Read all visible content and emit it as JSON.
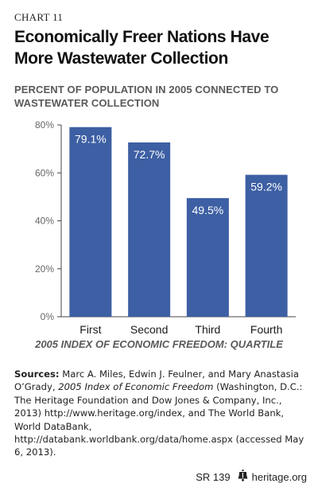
{
  "chart_label": "CHART 11",
  "title": "Economically Freer Nations Have More Wastewater Collection",
  "subtitle": "PERCENT OF POPULATION IN 2005 CONNECTED TO WASTEWATER COLLECTION",
  "colors": {
    "bar": "#3d5fa3",
    "axis": "#444444",
    "grid_text": "#666666"
  },
  "chart_data": {
    "type": "bar",
    "categories": [
      "First",
      "Second",
      "Third",
      "Fourth"
    ],
    "values": [
      79.1,
      72.7,
      49.5,
      59.2
    ],
    "value_labels": [
      "79.1%",
      "72.7%",
      "49.5%",
      "59.2%"
    ],
    "title": "Economically Freer Nations Have More Wastewater Collection",
    "ylabel": "PERCENT OF POPULATION IN 2005 CONNECTED TO WASTEWATER COLLECTION",
    "xlabel": "2005 INDEX OF ECONOMIC FREEDOM: QUARTILE",
    "ylim": [
      0,
      80
    ],
    "yticks": [
      0,
      20,
      40,
      60,
      80
    ],
    "ytick_labels": [
      "0%",
      "20%",
      "40%",
      "60%",
      "80%"
    ],
    "grid": false,
    "legend": "none"
  },
  "sources": {
    "heading": "Sources:",
    "part1": " Marc A. Miles, Edwin J. Feulner, and Mary Anastasia O’Grady, ",
    "book_title": "2005 Index of Economic Freedom",
    "part2": " (Washington, D.C.: The Heritage Foundation and Dow Jones & Company, Inc., 2013) http://www.heritage.org/index, and The World Bank, World DataBank, http://databank.worldbank.org/data/home.aspx (accessed May 6, 2013)."
  },
  "footer": {
    "report": "SR 139",
    "site": "heritage.org",
    "logo_icon": "liberty-bell-icon"
  }
}
